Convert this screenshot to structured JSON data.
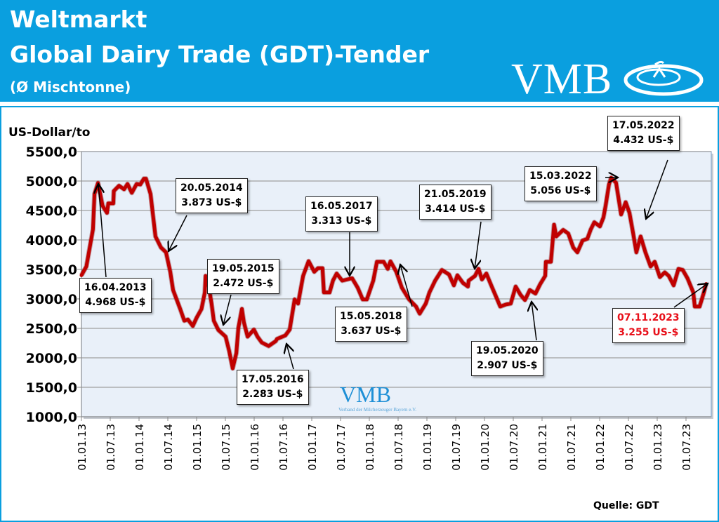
{
  "header": {
    "title_line1": "Weltmarkt",
    "title_line2": "Global Dairy Trade (GDT)-Tender",
    "title_line3": "(Ø Mischtonne)",
    "logo_text": "VMB",
    "brand_color": "#0a9fdf"
  },
  "watermark": {
    "text": "VMB",
    "subtitle": "Verband der Milcherzeuger Bayern e.V."
  },
  "source": "Quelle: GDT",
  "chart_data": {
    "type": "line",
    "title": "",
    "ylabel": "US-Dollar/to",
    "xlabel": "",
    "ylim": [
      1000,
      5500
    ],
    "yticks": [
      1000,
      1500,
      2000,
      2500,
      3000,
      3500,
      4000,
      4500,
      5000,
      5500
    ],
    "ytick_labels": [
      "1000,0",
      "1500,0",
      "2000,0",
      "2500,0",
      "3000,0",
      "3500,0",
      "4000,0",
      "4500,0",
      "5000,0",
      "5500,0"
    ],
    "xlim": [
      "2013-01-01",
      "2023-11-30"
    ],
    "xtick_labels": [
      "01.01.13",
      "01.07.13",
      "01.01.14",
      "01.07.14",
      "01.01.15",
      "01.07.15",
      "01.01.16",
      "01.07.16",
      "01.01.17",
      "01.07.17",
      "01.01.18",
      "01.07.18",
      "01.01.19",
      "01.07.19",
      "01.01.20",
      "01.07.20",
      "01.01.21",
      "01.07.21",
      "01.01.22",
      "01.07.22",
      "01.01.23",
      "01.07.23"
    ],
    "grid": true,
    "line_color": "#c00000",
    "series": [
      {
        "x": [
          "2013-01-01",
          "2013-02-01",
          "2013-03-15",
          "2013-03-25",
          "2013-04-16",
          "2013-05-15",
          "2013-06-12",
          "2013-06-20",
          "2013-07-22",
          "2013-07-25",
          "2013-08-27",
          "2013-09-28",
          "2013-10-20",
          "2013-11-16",
          "2013-12-17",
          "2014-01-09",
          "2014-02-01",
          "2014-02-14",
          "2014-03-15",
          "2014-04-15",
          "2014-05-20",
          "2014-06-21",
          "2014-07-18",
          "2014-08-05",
          "2014-09-19",
          "2014-10-15",
          "2014-11-07",
          "2014-12-08",
          "2015-01-01",
          "2015-02-01",
          "2015-02-22",
          "2015-02-27",
          "2015-03-15",
          "2015-04-06",
          "2015-04-20",
          "2015-05-19",
          "2015-07-04",
          "2015-07-26",
          "2015-08-18",
          "2015-09-10",
          "2015-09-23",
          "2015-10-15",
          "2015-10-28",
          "2015-11-20",
          "2015-12-30",
          "2016-01-22",
          "2016-02-18",
          "2016-04-02",
          "2016-05-17",
          "2016-05-25",
          "2016-07-17",
          "2016-08-14",
          "2016-09-14",
          "2016-10-06",
          "2016-11-07",
          "2016-12-12",
          "2017-01-17",
          "2017-02-09",
          "2017-03-10",
          "2017-03-19",
          "2017-04-24",
          "2017-05-16",
          "2017-06-08",
          "2017-07-13",
          "2017-09-14",
          "2017-10-19",
          "2017-11-20",
          "2017-12-16",
          "2018-01-26",
          "2018-02-18",
          "2018-04-02",
          "2018-04-28",
          "2018-05-15",
          "2018-06-21",
          "2018-07-26",
          "2018-09-10",
          "2018-10-24",
          "2018-11-16",
          "2018-12-25",
          "2019-01-17",
          "2019-02-22",
          "2019-04-06",
          "2019-05-21",
          "2019-06-21",
          "2019-07-13",
          "2019-08-18",
          "2019-09-18",
          "2019-09-23",
          "2019-11-02",
          "2019-11-24",
          "2019-12-16",
          "2020-01-13",
          "2020-02-13",
          "2020-03-14",
          "2020-04-10",
          "2020-05-19",
          "2020-06-16",
          "2020-07-17",
          "2020-08-17",
          "2020-09-14",
          "2020-10-15",
          "2020-11-20",
          "2020-12-20",
          "2021-01-21",
          "2021-01-25",
          "2021-02-26",
          "2021-03-18",
          "2021-04-01",
          "2021-05-15",
          "2021-06-16",
          "2021-07-18",
          "2021-08-13",
          "2021-09-15",
          "2021-10-15",
          "2021-11-06",
          "2021-11-28",
          "2022-01-03",
          "2022-01-25",
          "2022-02-08",
          "2022-03-01",
          "2022-03-15",
          "2022-04-15",
          "2022-05-17",
          "2022-06-15",
          "2022-07-09",
          "2022-08-01",
          "2022-08-22",
          "2022-09-18",
          "2022-10-18",
          "2022-11-20",
          "2022-12-16",
          "2023-01-18",
          "2023-02-18",
          "2023-03-15",
          "2023-04-15",
          "2023-05-16",
          "2023-06-12",
          "2023-07-12",
          "2023-08-18",
          "2023-08-27",
          "2023-09-27",
          "2023-10-24",
          "2023-11-07"
        ],
        "y": [
          3400,
          3550,
          4180,
          4780,
          4968,
          4580,
          4460,
          4620,
          4620,
          4830,
          4920,
          4860,
          4950,
          4800,
          4950,
          4940,
          5040,
          5040,
          4780,
          4060,
          3873,
          3790,
          3460,
          3150,
          2830,
          2630,
          2650,
          2540,
          2680,
          2830,
          3110,
          3390,
          3270,
          2920,
          2630,
          2472,
          2360,
          2120,
          1820,
          2080,
          2510,
          2830,
          2600,
          2360,
          2480,
          2360,
          2260,
          2200,
          2283,
          2320,
          2380,
          2480,
          2990,
          2920,
          3390,
          3640,
          3460,
          3520,
          3520,
          3110,
          3110,
          3313,
          3430,
          3310,
          3350,
          3190,
          2990,
          2990,
          3310,
          3630,
          3630,
          3510,
          3637,
          3460,
          3190,
          2990,
          2870,
          2750,
          2920,
          3110,
          3310,
          3490,
          3414,
          3230,
          3400,
          3270,
          3210,
          3310,
          3390,
          3510,
          3330,
          3430,
          3230,
          3040,
          2870,
          2907,
          2920,
          3210,
          3070,
          2980,
          3150,
          3090,
          3250,
          3390,
          3630,
          3630,
          4260,
          4060,
          4170,
          4110,
          3870,
          3790,
          3990,
          4020,
          4180,
          4300,
          4230,
          4380,
          4580,
          4940,
          5056,
          4970,
          4432,
          4640,
          4460,
          4120,
          3790,
          4060,
          3790,
          3550,
          3630,
          3370,
          3450,
          3390,
          3230,
          3510,
          3490,
          3350,
          3110,
          2870,
          2870,
          3110,
          3255
        ]
      }
    ],
    "annotations": [
      {
        "date": "16.04.2013",
        "value": "4.968 US-$"
      },
      {
        "date": "20.05.2014",
        "value": "3.873 US-$"
      },
      {
        "date": "19.05.2015",
        "value": "2.472 US-$"
      },
      {
        "date": "17.05.2016",
        "value": "2.283 US-$"
      },
      {
        "date": "16.05.2017",
        "value": "3.313 US-$"
      },
      {
        "date": "15.05.2018",
        "value": "3.637 US-$"
      },
      {
        "date": "21.05.2019",
        "value": "3.414 US-$"
      },
      {
        "date": "19.05.2020",
        "value": "2.907 US-$"
      },
      {
        "date": "15.03.2022",
        "value": "5.056 US-$"
      },
      {
        "date": "17.05.2022",
        "value": "4.432 US-$"
      },
      {
        "date": "07.11.2023",
        "value": "3.255 US-$",
        "color": "#e8101a"
      }
    ]
  }
}
